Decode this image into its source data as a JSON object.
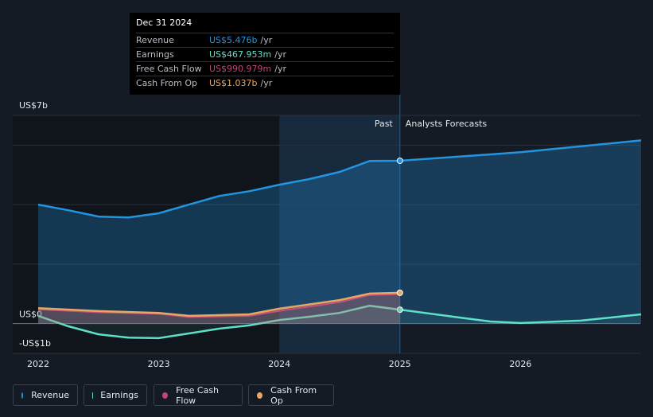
{
  "chart_data": {
    "type": "line",
    "xlim": [
      2022,
      2027
    ],
    "xticks": [
      2022,
      2023,
      2024,
      2025,
      2026
    ],
    "ylim": [
      -1,
      7
    ],
    "yticks": [
      {
        "value": 7,
        "label": "US$7b"
      },
      {
        "value": 0,
        "label": "US$0"
      },
      {
        "value": -1,
        "label": "-US$1b"
      }
    ],
    "grid_lines": [
      2,
      4,
      6
    ],
    "past_label": "Past",
    "forecast_label": "Analysts Forecasts",
    "divider": 2025,
    "past_start": 2024,
    "series": [
      {
        "name": "Revenue",
        "color": "#2394df",
        "x": [
          2022,
          2022.25,
          2022.5,
          2022.75,
          2023,
          2023.25,
          2023.5,
          2023.75,
          2024,
          2024.25,
          2024.5,
          2024.75,
          2025,
          2026,
          2027
        ],
        "values": [
          4.0,
          3.81,
          3.6,
          3.57,
          3.71,
          4.0,
          4.29,
          4.45,
          4.67,
          4.86,
          5.1,
          5.47,
          5.476,
          5.76,
          6.16
        ]
      },
      {
        "name": "Earnings",
        "color": "#5ee0c6",
        "x": [
          2022,
          2022.25,
          2022.5,
          2022.75,
          2023,
          2023.25,
          2023.5,
          2023.75,
          2024,
          2024.25,
          2024.5,
          2024.75,
          2025,
          2025.5,
          2025.75,
          2026,
          2026.5,
          2027
        ],
        "values": [
          0.26,
          -0.09,
          -0.36,
          -0.47,
          -0.49,
          -0.33,
          -0.17,
          -0.06,
          0.12,
          0.23,
          0.36,
          0.6,
          0.468,
          0.2,
          0.07,
          0.02,
          0.1,
          0.31
        ]
      },
      {
        "name": "Free Cash Flow",
        "color": "#c2447b",
        "x": [
          2022,
          2022.5,
          2023,
          2023.25,
          2023.75,
          2024,
          2024.5,
          2024.75,
          2025
        ],
        "values": [
          0.48,
          0.38,
          0.33,
          0.22,
          0.26,
          0.43,
          0.72,
          0.96,
          0.991
        ]
      },
      {
        "name": "Cash From Op",
        "color": "#e8a765",
        "x": [
          2022,
          2022.5,
          2023,
          2023.25,
          2023.75,
          2024,
          2024.5,
          2024.75,
          2025
        ],
        "values": [
          0.52,
          0.42,
          0.36,
          0.26,
          0.31,
          0.5,
          0.79,
          1.01,
          1.037
        ]
      }
    ],
    "tooltip": {
      "title": "Dec 31 2024",
      "rows": [
        {
          "label": "Revenue",
          "value": "US$5.476b",
          "unit": "/yr"
        },
        {
          "label": "Earnings",
          "value": "US$467.953m",
          "unit": "/yr"
        },
        {
          "label": "Free Cash Flow",
          "value": "US$990.979m",
          "unit": "/yr"
        },
        {
          "label": "Cash From Op",
          "value": "US$1.037b",
          "unit": "/yr"
        }
      ]
    }
  }
}
